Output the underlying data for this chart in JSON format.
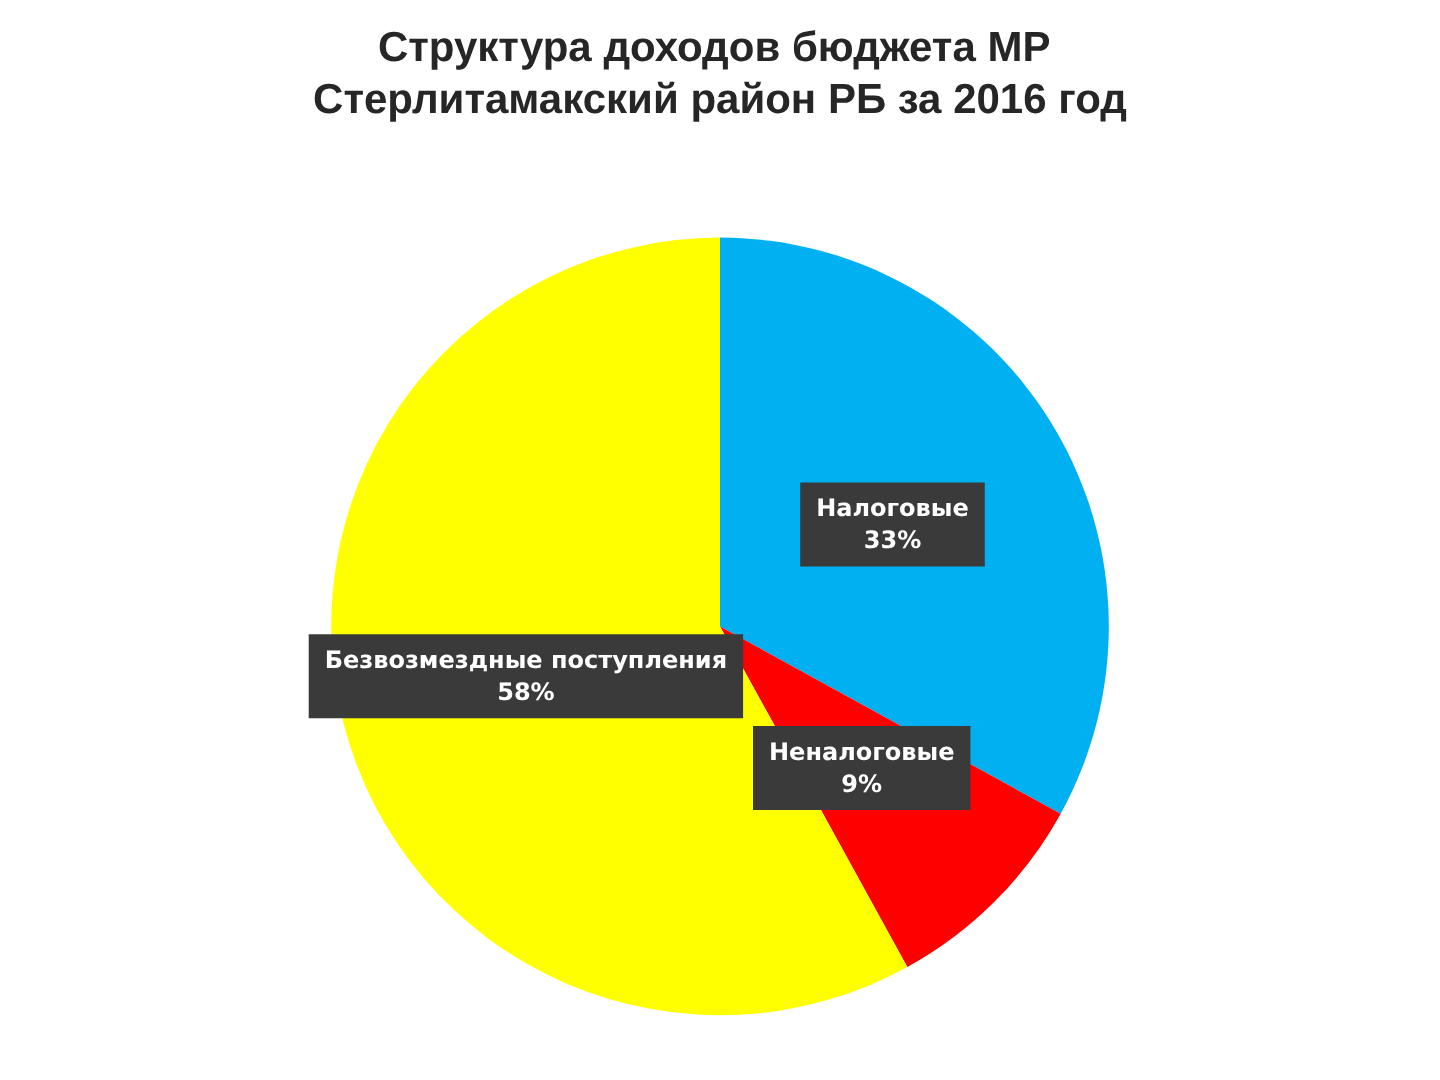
{
  "chart_data": {
    "type": "pie",
    "title": "Структура доходов бюджета МР Стерлитамакский район РБ за 2016 год",
    "categories": [
      "Налоговые",
      "Неналоговые",
      "Безвозмездные поступления"
    ],
    "values": [
      33,
      9,
      58
    ],
    "value_labels": [
      "33%",
      "9%",
      "58%"
    ],
    "colors": [
      "#00b0f0",
      "#ff0000",
      "#ffff00"
    ]
  }
}
